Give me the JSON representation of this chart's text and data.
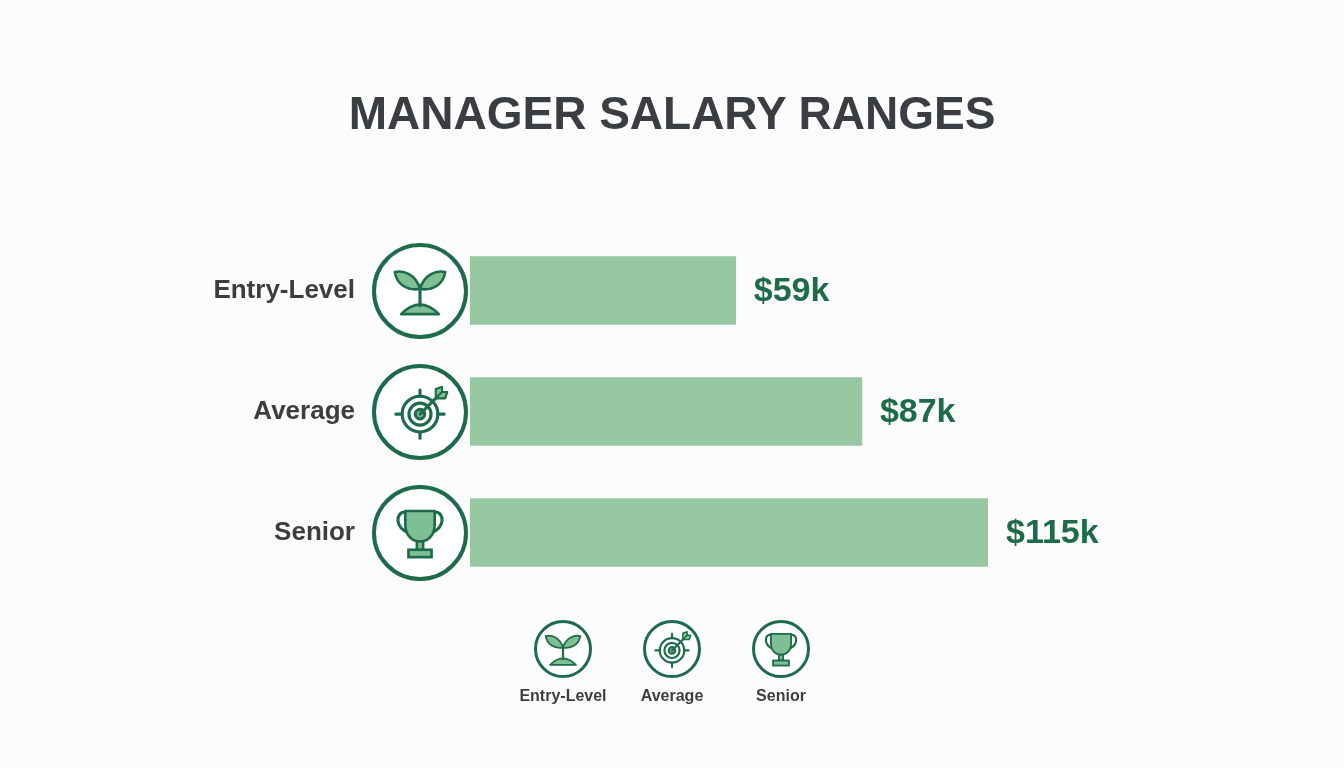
{
  "chart_data": {
    "type": "bar",
    "title": "MANAGER SALARY RANGES",
    "orientation": "horizontal",
    "categories": [
      "Entry-Level",
      "Average",
      "Senior"
    ],
    "values": [
      59,
      87,
      115
    ],
    "value_labels": [
      "$59k",
      "$87k",
      "$115k"
    ],
    "color": "#96c8a2",
    "xlim": [
      0,
      115
    ],
    "tick_labels": "y"
  }
}
